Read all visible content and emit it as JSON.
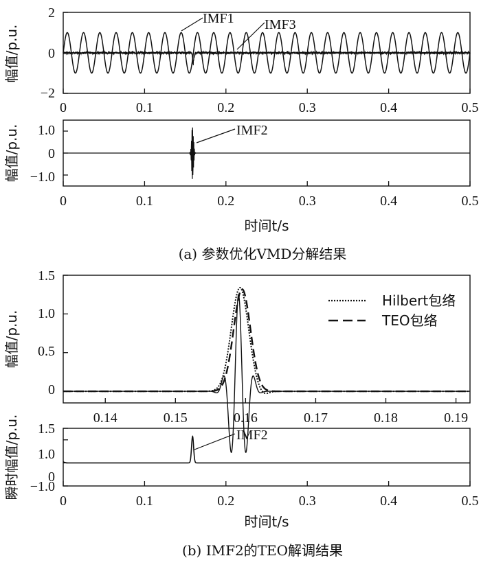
{
  "captions": {
    "a": "(a) 参数优化VMD分解结果",
    "b": "(b) IMF2的TEO解调结果"
  },
  "chart_data": [
    {
      "id": "p1",
      "type": "line",
      "ylabel": "幅值/p.u.",
      "xlabel": "",
      "xlim": [
        0,
        0.5
      ],
      "ylim": [
        -2,
        2
      ],
      "x_ticks": [
        "0",
        "0.1",
        "0.2",
        "0.3",
        "0.4",
        "0.5"
      ],
      "y_ticks": [
        "2",
        "0",
        "−2"
      ],
      "series": [
        {
          "name": "IMF1",
          "type": "sine",
          "amplitude": 1.0,
          "frequency_hz": 50
        },
        {
          "name": "IMF3",
          "type": "noise",
          "amplitude": 0.06,
          "burst_at": 0.16,
          "burst_amplitude": 0.6
        }
      ],
      "annotations": [
        "IMF1",
        "IMF3"
      ]
    },
    {
      "id": "p2",
      "type": "line",
      "ylabel": "幅值/p.u.",
      "xlabel": "时间t/s",
      "xlim": [
        0,
        0.5
      ],
      "ylim": [
        -1.5,
        1.5
      ],
      "x_ticks": [
        "0",
        "0.1",
        "0.2",
        "0.3",
        "0.4",
        "0.5"
      ],
      "y_ticks": [
        "1.0",
        "0",
        "−1.0"
      ],
      "series": [
        {
          "name": "IMF2",
          "type": "transient",
          "center": 0.159,
          "amplitude": 1.25
        }
      ],
      "annotations": [
        "IMF2"
      ]
    },
    {
      "id": "p3",
      "type": "line",
      "ylabel": "幅值/p.u.",
      "xlabel": "",
      "xlim": [
        0.134,
        0.192
      ],
      "ylim": [
        -0.15,
        1.5
      ],
      "x_ticks": [
        "0.14",
        "0.15",
        "0.16",
        "0.17",
        "0.18",
        "0.19"
      ],
      "y_ticks": [
        "1.5",
        "1.0",
        "0.5",
        "0"
      ],
      "legend": {
        "position": "top-right",
        "entries": [
          "Hilbert包络",
          "TEO包络"
        ]
      },
      "series": [
        {
          "name": "IMF2",
          "type": "oscillation",
          "center": 0.159,
          "peak": 1.25
        },
        {
          "name": "Hilbert包络",
          "type": "envelope",
          "center": 0.1592,
          "peak": 1.34
        },
        {
          "name": "TEO包络",
          "type": "envelope",
          "center": 0.1595,
          "peak": 1.32
        }
      ]
    },
    {
      "id": "p4",
      "type": "line",
      "ylabel": "瞬时幅值/p.u.",
      "xlabel": "时间t/s",
      "xlim": [
        0,
        0.5
      ],
      "ylim": [
        -1.0,
        1.5
      ],
      "x_ticks": [
        "0",
        "0.1",
        "0.2",
        "0.3",
        "0.4",
        "0.5"
      ],
      "y_ticks": [
        "1.5",
        "1.0",
        "0",
        "−1.0"
      ],
      "series": [
        {
          "name": "IMF2",
          "type": "pulse",
          "center": 0.159,
          "peak": 1.15
        }
      ],
      "annotations": [
        "IMF2"
      ]
    }
  ]
}
